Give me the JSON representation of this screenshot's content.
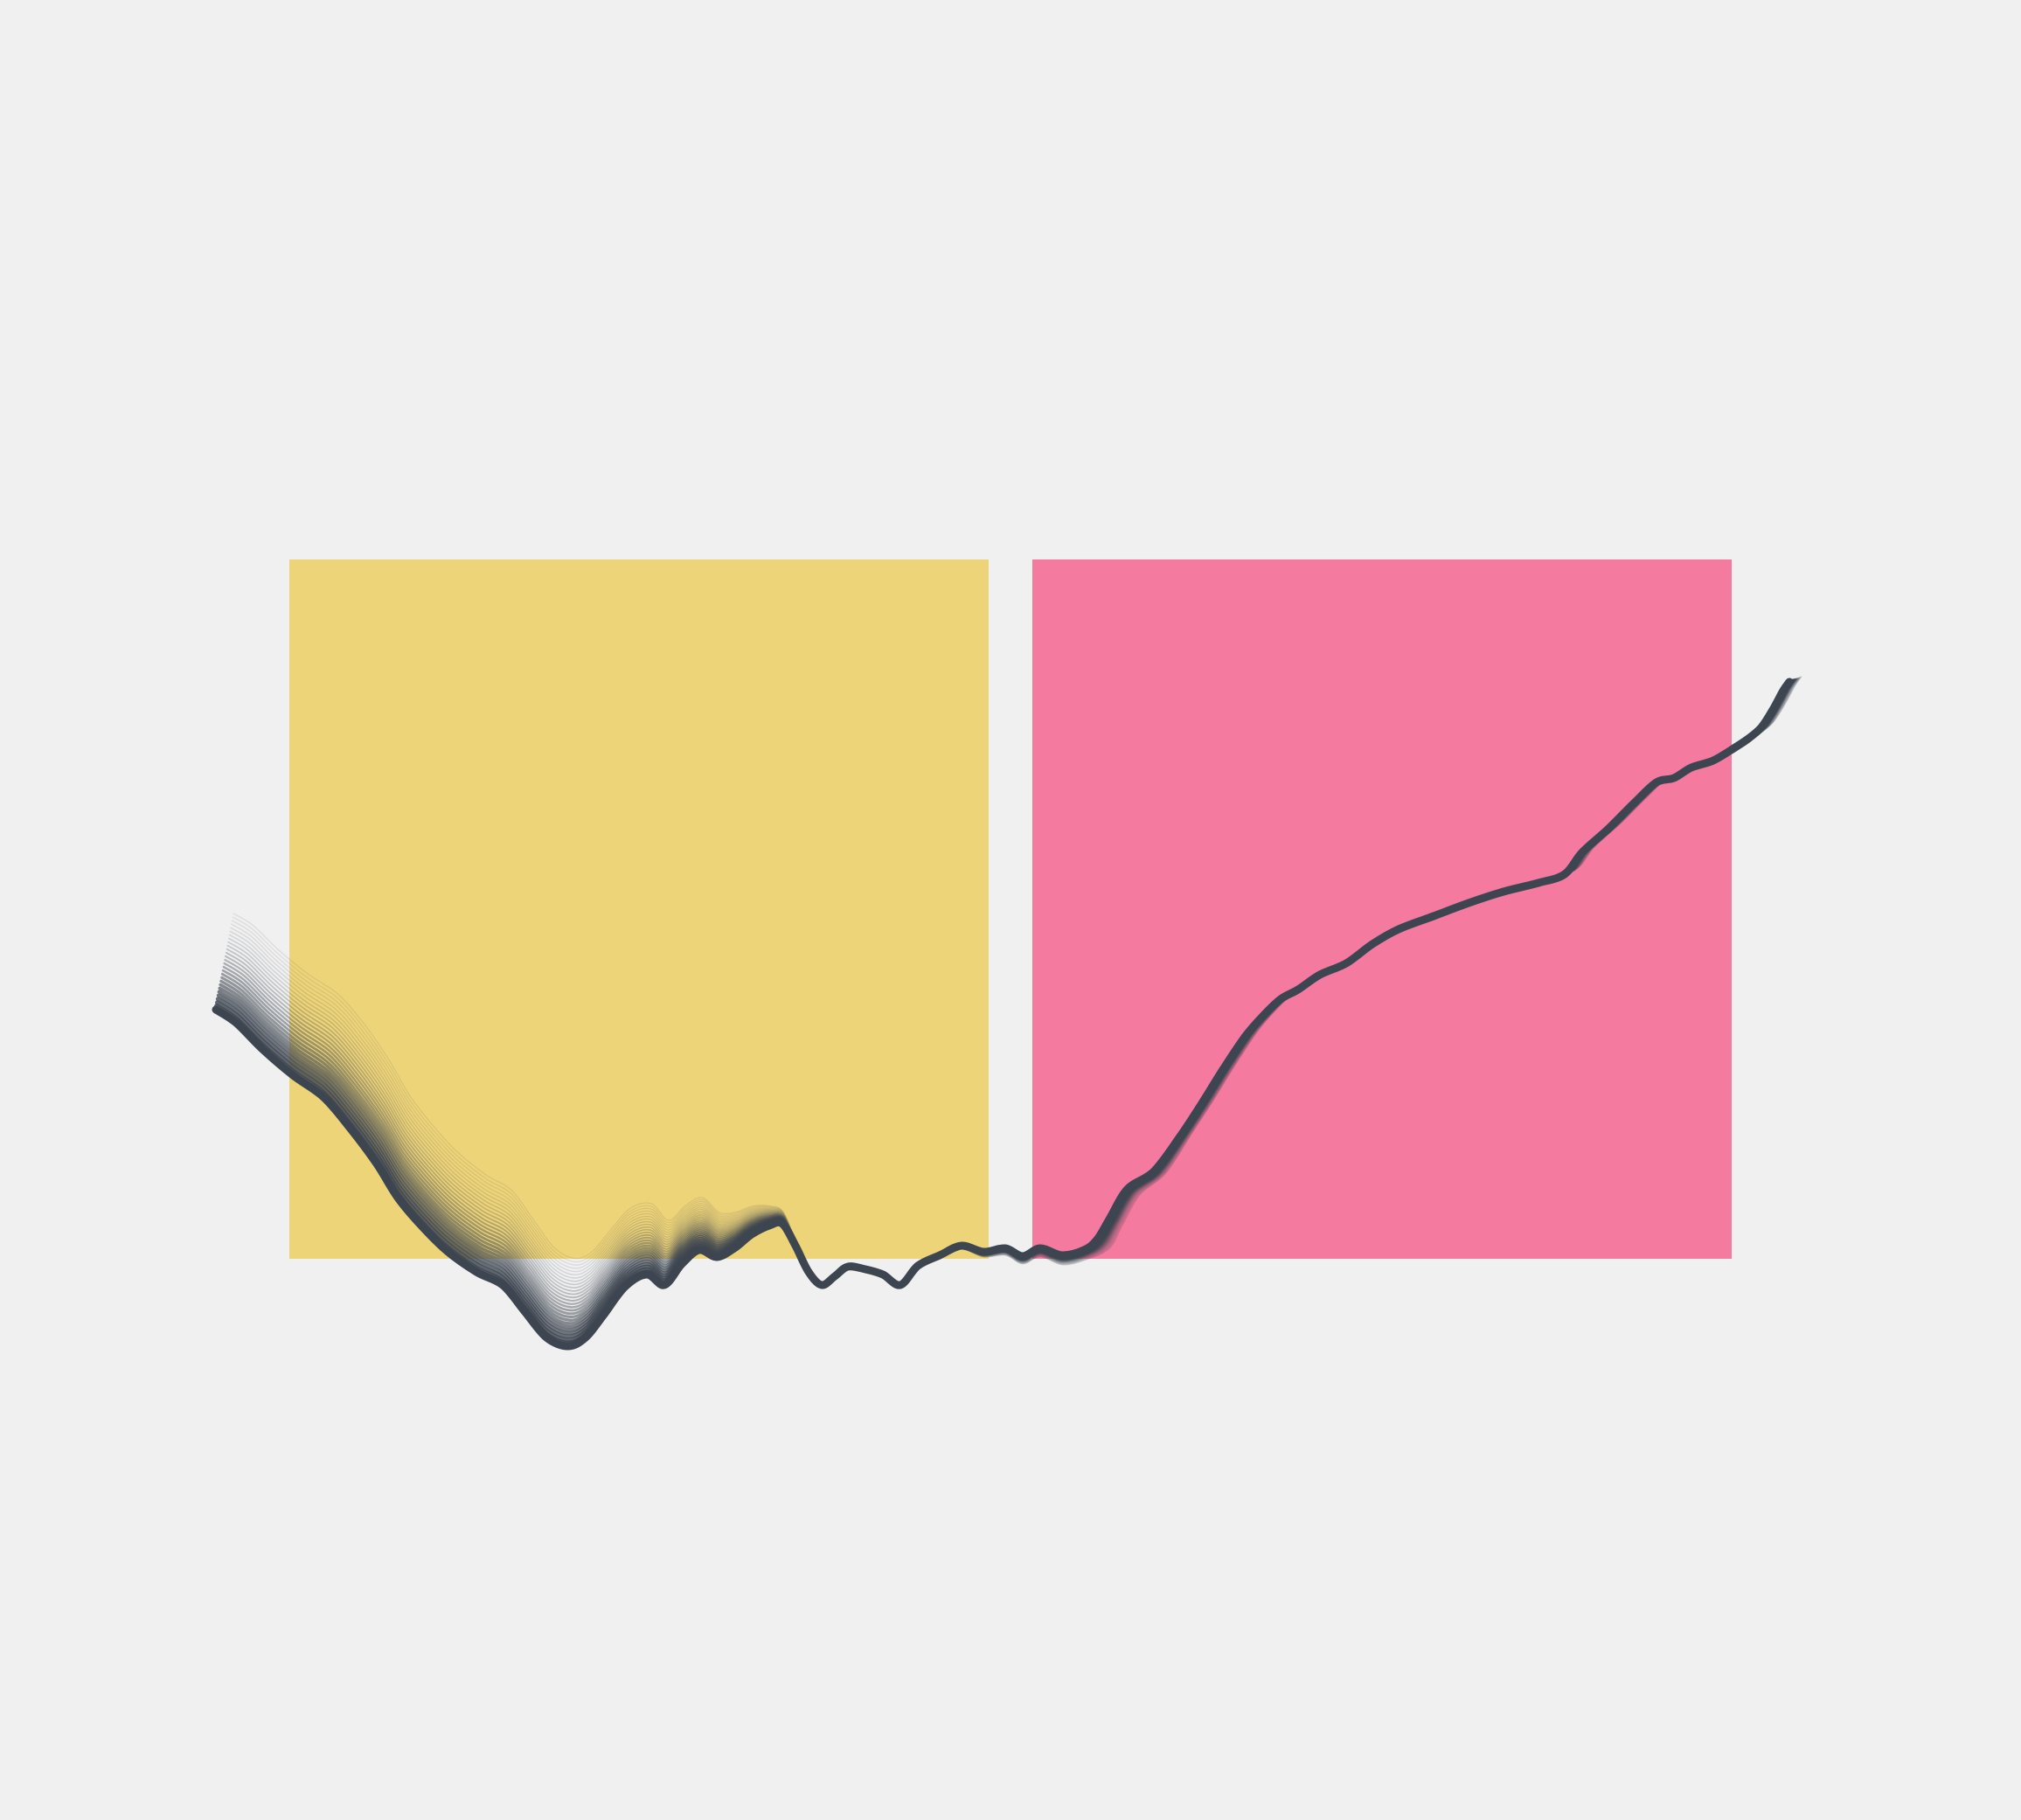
{
  "artwork": {
    "background_color": "#F0F0F0",
    "left_panel": {
      "color": "#EED479"
    },
    "right_panel": {
      "color": "#F57A9F"
    },
    "line_bundle": {
      "color": "#3D4550",
      "strand_count": 28,
      "highlight_color": "#FFFFFF"
    }
  }
}
